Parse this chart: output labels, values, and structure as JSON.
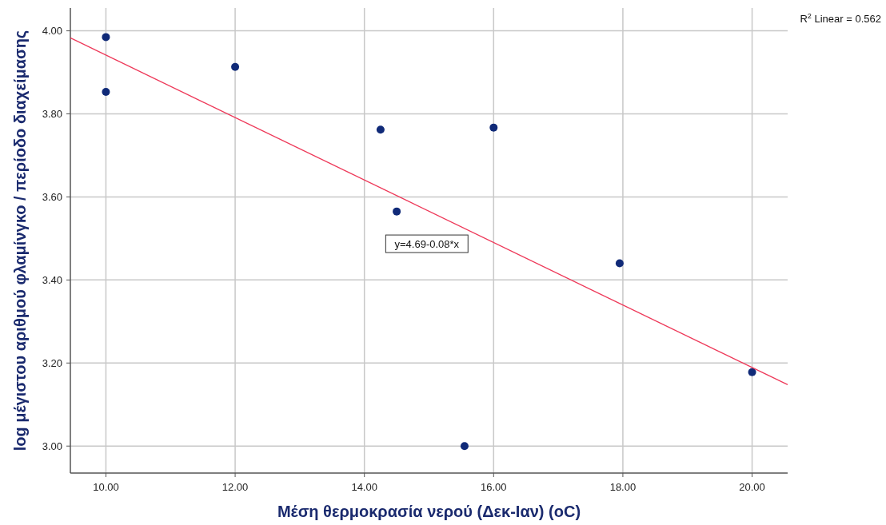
{
  "chart_data": {
    "type": "scatter",
    "xlabel": "Μέση θερμοκρασία νερού (Δεκ-Ιαν) (oC)",
    "ylabel": "log μέγιστου αριθμού φλαμίνγκο / περίοδο διαχείμασης",
    "xlim": [
      9.45,
      20.55
    ],
    "ylim": [
      2.935,
      4.055
    ],
    "xticks": [
      {
        "value": 10,
        "label": "10.00"
      },
      {
        "value": 12,
        "label": "12.00"
      },
      {
        "value": 14,
        "label": "14.00"
      },
      {
        "value": 16,
        "label": "16.00"
      },
      {
        "value": 18,
        "label": "18.00"
      },
      {
        "value": 20,
        "label": "20.00"
      }
    ],
    "yticks": [
      {
        "value": 3,
        "label": "3.00"
      },
      {
        "value": 3.2,
        "label": "3.20"
      },
      {
        "value": 3.4,
        "label": "3.40"
      },
      {
        "value": 3.6,
        "label": "3.60"
      },
      {
        "value": 3.8,
        "label": "3.80"
      },
      {
        "value": 4,
        "label": "4.00"
      }
    ],
    "grid": true,
    "series": [
      {
        "marker": "circle",
        "color": "#102a78",
        "x": [
          10,
          10,
          12,
          14.25,
          14.5,
          16,
          15.55,
          17.95,
          20
        ],
        "values": [
          3.985,
          3.853,
          3.913,
          3.762,
          3.565,
          3.767,
          3.0,
          3.44,
          3.178
        ]
      },
      {
        "type": "line",
        "color": "#ee3a5a",
        "x": [
          9.45,
          20.55
        ],
        "values": [
          3.983,
          3.148
        ]
      }
    ],
    "annotations": [
      "R$^{2}$ Linear = 0.562",
      "y=4.69-0.08*x"
    ]
  }
}
